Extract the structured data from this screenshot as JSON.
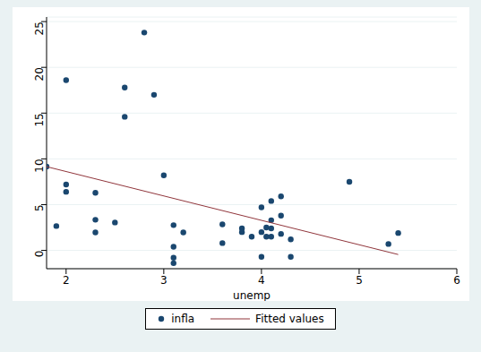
{
  "chart_data": {
    "type": "scatter",
    "x_label": "unemp",
    "series": [
      {
        "name": "infla",
        "type": "scatter",
        "color": "#1a476f",
        "marker": "circle",
        "x": [
          1.8,
          1.9,
          2.0,
          2.0,
          2.0,
          2.3,
          2.3,
          2.3,
          2.5,
          2.6,
          2.6,
          2.8,
          2.9,
          3.0,
          3.1,
          3.1,
          3.1,
          3.1,
          3.2,
          3.6,
          3.6,
          3.8,
          3.8,
          3.9,
          4.0,
          4.0,
          4.0,
          4.05,
          4.05,
          4.1,
          4.1,
          4.1,
          4.1,
          4.2,
          4.2,
          4.2,
          4.3,
          4.3,
          4.9,
          5.3,
          5.4
        ],
        "values": [
          9.15,
          2.66,
          18.6,
          7.2,
          6.4,
          6.3,
          3.35,
          1.97,
          3.05,
          17.8,
          14.6,
          23.8,
          17.0,
          8.2,
          2.76,
          0.4,
          -0.8,
          -1.4,
          1.97,
          2.85,
          0.8,
          2.4,
          2.0,
          1.5,
          4.7,
          2.0,
          -0.7,
          2.5,
          1.5,
          5.4,
          3.3,
          2.4,
          1.5,
          3.8,
          5.9,
          1.8,
          1.2,
          -0.7,
          7.5,
          0.7,
          1.9
        ]
      },
      {
        "name": "Fitted values",
        "type": "line",
        "color": "#90353b",
        "x": [
          1.8,
          5.4
        ],
        "values": [
          9.15,
          -0.45
        ]
      }
    ],
    "xlim": [
      1.8,
      6
    ],
    "xticks": [
      2,
      3,
      4,
      5,
      6
    ],
    "ylim": [
      -2,
      25.5
    ],
    "yticks": [
      0,
      5,
      10,
      15,
      20,
      25
    ],
    "grid": true,
    "legend": "bottom"
  }
}
